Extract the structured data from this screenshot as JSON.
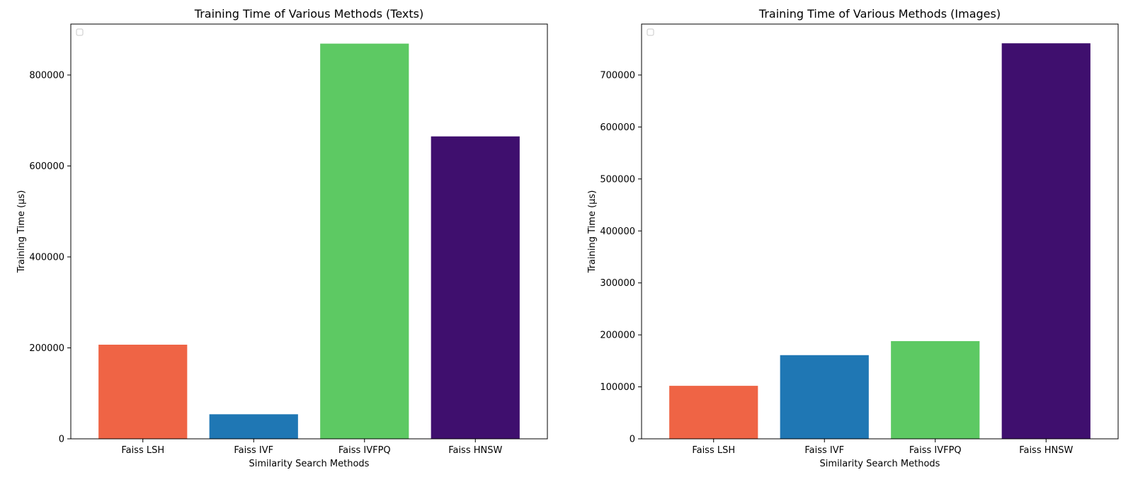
{
  "chart_data": [
    {
      "type": "bar",
      "title": "Training Time of Various Methods (Texts)",
      "xlabel": "Similarity Search Methods",
      "ylabel": "Training Time (μs)",
      "categories": [
        "Faiss LSH",
        "Faiss IVF",
        "Faiss IVFPQ",
        "Faiss HNSW"
      ],
      "values": [
        207000,
        54000,
        869000,
        665000
      ],
      "colors": [
        "#EF6445",
        "#1F77B4",
        "#5DC963",
        "#3F0F6E"
      ],
      "ylim": [
        0,
        912000
      ],
      "yticks": [
        0,
        200000,
        400000,
        600000,
        800000
      ],
      "grid": false,
      "legend": "top-left (empty)"
    },
    {
      "type": "bar",
      "title": "Training Time of Various Methods (Images)",
      "xlabel": "Similarity Search Methods",
      "ylabel": "Training Time (μs)",
      "categories": [
        "Faiss LSH",
        "Faiss IVF",
        "Faiss IVFPQ",
        "Faiss HNSW"
      ],
      "values": [
        102000,
        161000,
        188000,
        761000
      ],
      "colors": [
        "#EF6445",
        "#1F77B4",
        "#5DC963",
        "#3F0F6E"
      ],
      "ylim": [
        0,
        798000
      ],
      "yticks": [
        0,
        100000,
        200000,
        300000,
        400000,
        500000,
        600000,
        700000
      ],
      "grid": false,
      "legend": "top-left (empty)"
    }
  ]
}
